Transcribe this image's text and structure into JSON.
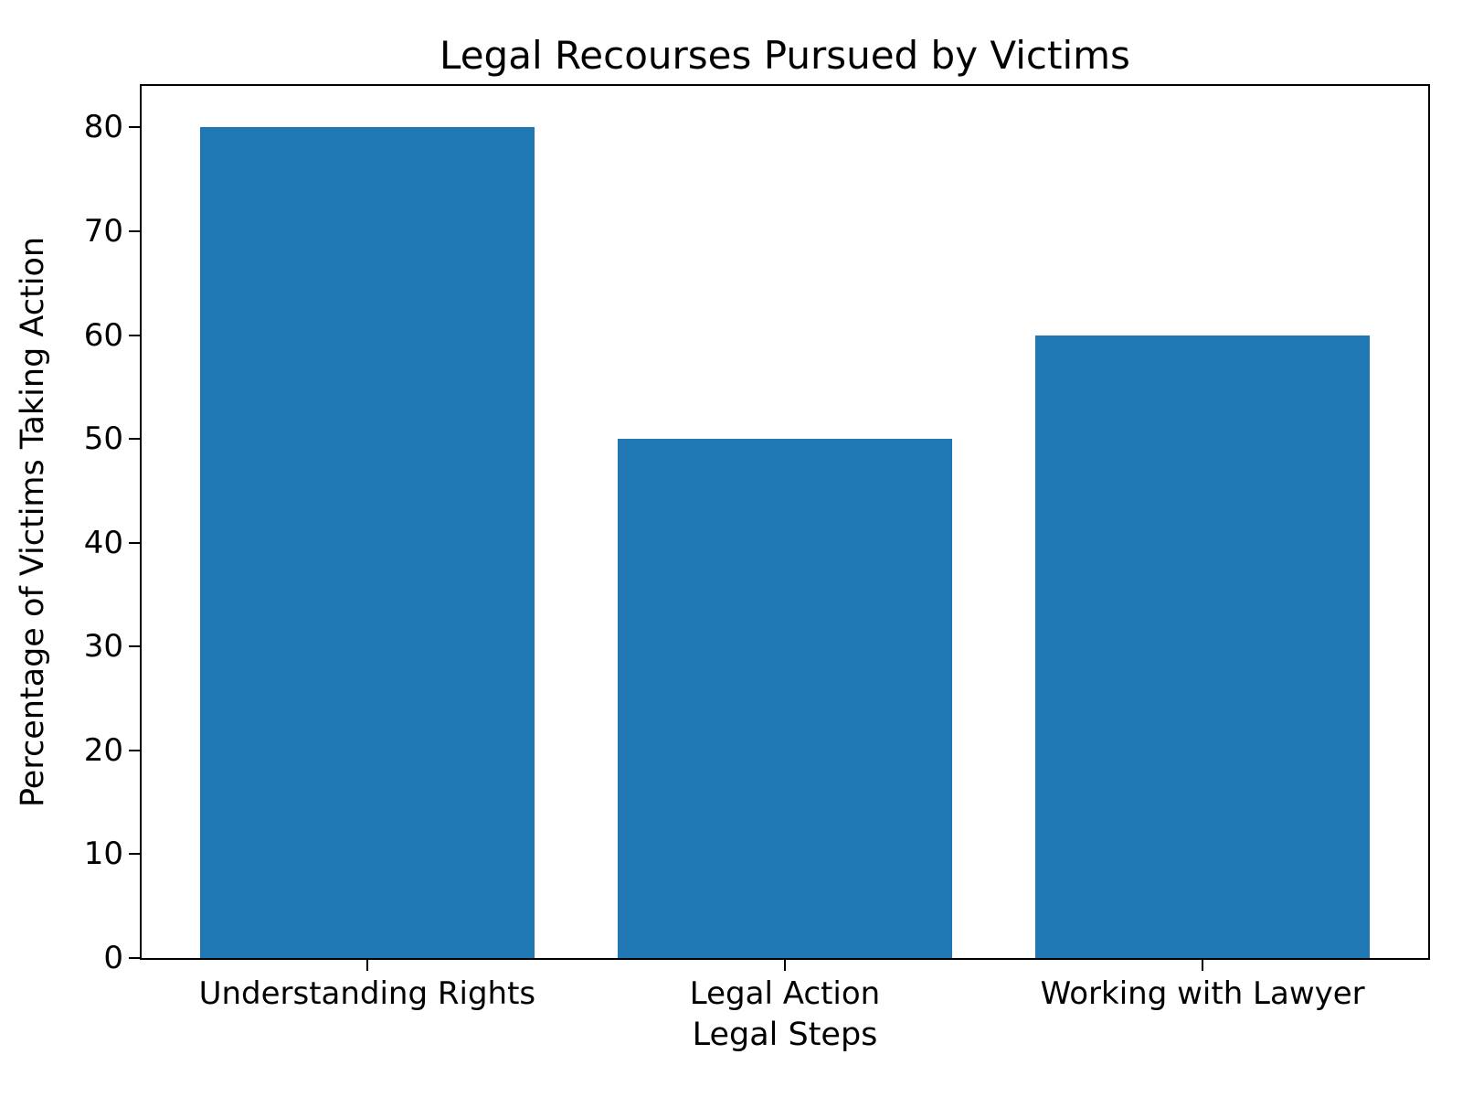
{
  "chart_data": {
    "type": "bar",
    "title": "Legal Recourses Pursued by Victims",
    "xlabel": "Legal Steps",
    "ylabel": "Percentage of Victims Taking Action",
    "categories": [
      "Understanding Rights",
      "Legal Action",
      "Working with Lawyer"
    ],
    "values": [
      80,
      50,
      60
    ],
    "yticks": [
      0,
      10,
      20,
      30,
      40,
      50,
      60,
      70,
      80
    ],
    "ylim": [
      0,
      84
    ],
    "bar_color": "#1f77b4",
    "axis_color": "#000000",
    "background_color": "#ffffff",
    "grid": false,
    "legend_position": "none"
  }
}
